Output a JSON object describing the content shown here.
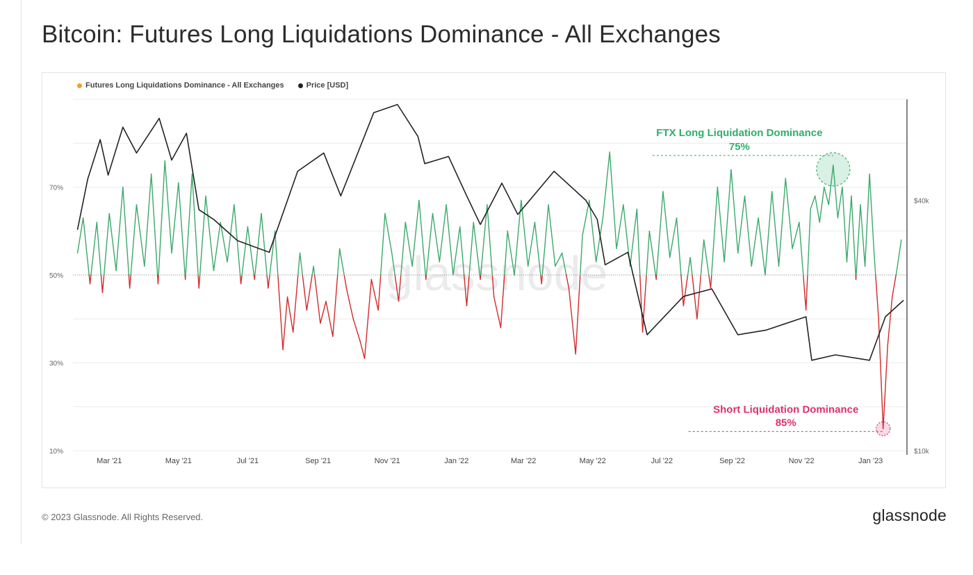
{
  "page": {
    "title": "Bitcoin: Futures Long Liquidations Dominance - All Exchanges",
    "copyright": "© 2023 Glassnode. All Rights Reserved.",
    "logo": "glassnode",
    "watermark": "glassnode"
  },
  "colors": {
    "above_50": "#3aa86b",
    "below_50": "#d02a2a",
    "price": "#222222",
    "dominance_legend": "#f0a030",
    "ftx_annotation": "#2fae6b",
    "short_annotation": "#e0306a"
  },
  "chart_data": {
    "type": "line",
    "title": "Bitcoin: Futures Long Liquidations Dominance - All Exchanges",
    "legend": [
      {
        "name": "Futures Long Liquidations Dominance - All Exchanges",
        "color": "#f0a030"
      },
      {
        "name": "Price [USD]",
        "color": "#222222"
      }
    ],
    "x_ticks": [
      "Mar '21",
      "May '21",
      "Jul '21",
      "Sep '21",
      "Nov '21",
      "Jan '22",
      "Mar '22",
      "May '22",
      "Jul '22",
      "Sep '22",
      "Nov '22",
      "Jan '23"
    ],
    "y_left": {
      "ticks": [
        "10%",
        "30%",
        "50%",
        "70%"
      ],
      "range": [
        10,
        90
      ],
      "unit": "%"
    },
    "y_right": {
      "ticks": [
        "$10k",
        "$40k"
      ],
      "scale": "log",
      "range": [
        10000,
        70000
      ]
    },
    "threshold": 50,
    "series": [
      {
        "name": "Futures Long Liquidations Dominance - All Exchanges",
        "axis": "left",
        "points": [
          [
            "2021-02-01",
            55
          ],
          [
            "2021-02-06",
            63
          ],
          [
            "2021-02-12",
            48
          ],
          [
            "2021-02-18",
            62
          ],
          [
            "2021-02-23",
            46
          ],
          [
            "2021-03-01",
            64
          ],
          [
            "2021-03-07",
            51
          ],
          [
            "2021-03-13",
            70
          ],
          [
            "2021-03-19",
            47
          ],
          [
            "2021-03-25",
            66
          ],
          [
            "2021-04-01",
            52
          ],
          [
            "2021-04-07",
            73
          ],
          [
            "2021-04-13",
            48
          ],
          [
            "2021-04-19",
            76
          ],
          [
            "2021-04-25",
            55
          ],
          [
            "2021-05-01",
            71
          ],
          [
            "2021-05-07",
            49
          ],
          [
            "2021-05-13",
            73
          ],
          [
            "2021-05-19",
            47
          ],
          [
            "2021-05-25",
            68
          ],
          [
            "2021-06-01",
            51
          ],
          [
            "2021-06-07",
            62
          ],
          [
            "2021-06-13",
            53
          ],
          [
            "2021-06-19",
            66
          ],
          [
            "2021-06-25",
            48
          ],
          [
            "2021-07-01",
            61
          ],
          [
            "2021-07-07",
            49
          ],
          [
            "2021-07-13",
            64
          ],
          [
            "2021-07-19",
            47
          ],
          [
            "2021-07-25",
            60
          ],
          [
            "2021-08-01",
            33
          ],
          [
            "2021-08-05",
            45
          ],
          [
            "2021-08-10",
            37
          ],
          [
            "2021-08-16",
            55
          ],
          [
            "2021-08-22",
            42
          ],
          [
            "2021-08-28",
            52
          ],
          [
            "2021-09-03",
            39
          ],
          [
            "2021-09-08",
            44
          ],
          [
            "2021-09-14",
            36
          ],
          [
            "2021-09-20",
            56
          ],
          [
            "2021-09-26",
            47
          ],
          [
            "2021-10-02",
            40
          ],
          [
            "2021-10-08",
            35
          ],
          [
            "2021-10-12",
            31
          ],
          [
            "2021-10-18",
            49
          ],
          [
            "2021-10-24",
            42
          ],
          [
            "2021-10-30",
            64
          ],
          [
            "2021-11-05",
            55
          ],
          [
            "2021-11-11",
            44
          ],
          [
            "2021-11-17",
            62
          ],
          [
            "2021-11-23",
            52
          ],
          [
            "2021-11-29",
            67
          ],
          [
            "2021-12-05",
            49
          ],
          [
            "2021-12-11",
            64
          ],
          [
            "2021-12-17",
            53
          ],
          [
            "2021-12-23",
            66
          ],
          [
            "2021-12-29",
            50
          ],
          [
            "2022-01-04",
            61
          ],
          [
            "2022-01-10",
            43
          ],
          [
            "2022-01-16",
            62
          ],
          [
            "2022-01-22",
            49
          ],
          [
            "2022-01-28",
            66
          ],
          [
            "2022-02-03",
            45
          ],
          [
            "2022-02-09",
            38
          ],
          [
            "2022-02-15",
            60
          ],
          [
            "2022-02-21",
            50
          ],
          [
            "2022-02-27",
            67
          ],
          [
            "2022-03-05",
            52
          ],
          [
            "2022-03-11",
            62
          ],
          [
            "2022-03-17",
            48
          ],
          [
            "2022-03-23",
            66
          ],
          [
            "2022-03-29",
            52
          ],
          [
            "2022-04-04",
            55
          ],
          [
            "2022-04-10",
            47
          ],
          [
            "2022-04-16",
            32
          ],
          [
            "2022-04-22",
            59
          ],
          [
            "2022-04-28",
            67
          ],
          [
            "2022-05-04",
            53
          ],
          [
            "2022-05-10",
            63
          ],
          [
            "2022-05-16",
            78
          ],
          [
            "2022-05-22",
            56
          ],
          [
            "2022-05-28",
            66
          ],
          [
            "2022-06-03",
            52
          ],
          [
            "2022-06-09",
            65
          ],
          [
            "2022-06-14",
            37
          ],
          [
            "2022-06-20",
            60
          ],
          [
            "2022-06-26",
            49
          ],
          [
            "2022-07-02",
            69
          ],
          [
            "2022-07-08",
            54
          ],
          [
            "2022-07-14",
            63
          ],
          [
            "2022-07-20",
            43
          ],
          [
            "2022-07-26",
            54
          ],
          [
            "2022-08-01",
            40
          ],
          [
            "2022-08-07",
            58
          ],
          [
            "2022-08-13",
            47
          ],
          [
            "2022-08-19",
            70
          ],
          [
            "2022-08-25",
            53
          ],
          [
            "2022-08-31",
            74
          ],
          [
            "2022-09-06",
            55
          ],
          [
            "2022-09-12",
            68
          ],
          [
            "2022-09-18",
            52
          ],
          [
            "2022-09-24",
            63
          ],
          [
            "2022-09-30",
            50
          ],
          [
            "2022-10-06",
            69
          ],
          [
            "2022-10-12",
            52
          ],
          [
            "2022-10-18",
            72
          ],
          [
            "2022-10-24",
            56
          ],
          [
            "2022-10-30",
            62
          ],
          [
            "2022-11-05",
            42
          ],
          [
            "2022-11-09",
            65
          ],
          [
            "2022-11-13",
            68
          ],
          [
            "2022-11-17",
            62
          ],
          [
            "2022-11-21",
            70
          ],
          [
            "2022-11-25",
            66
          ],
          [
            "2022-11-29",
            75
          ],
          [
            "2022-12-03",
            63
          ],
          [
            "2022-12-07",
            70
          ],
          [
            "2022-12-11",
            53
          ],
          [
            "2022-12-15",
            68
          ],
          [
            "2022-12-19",
            49
          ],
          [
            "2022-12-23",
            66
          ],
          [
            "2022-12-27",
            52
          ],
          [
            "2022-12-31",
            73
          ],
          [
            "2023-01-04",
            55
          ],
          [
            "2023-01-08",
            40
          ],
          [
            "2023-01-12",
            15
          ],
          [
            "2023-01-16",
            34
          ],
          [
            "2023-01-20",
            45
          ],
          [
            "2023-01-24",
            51
          ],
          [
            "2023-01-28",
            58
          ]
        ]
      },
      {
        "name": "Price [USD]",
        "axis": "right",
        "points": [
          [
            "2021-02-01",
            34000
          ],
          [
            "2021-02-10",
            45000
          ],
          [
            "2021-02-21",
            56000
          ],
          [
            "2021-02-28",
            46000
          ],
          [
            "2021-03-13",
            60000
          ],
          [
            "2021-03-25",
            52000
          ],
          [
            "2021-04-14",
            63000
          ],
          [
            "2021-04-25",
            50000
          ],
          [
            "2021-05-08",
            58000
          ],
          [
            "2021-05-19",
            38000
          ],
          [
            "2021-06-01",
            36000
          ],
          [
            "2021-06-22",
            32000
          ],
          [
            "2021-07-20",
            30000
          ],
          [
            "2021-08-14",
            47000
          ],
          [
            "2021-09-06",
            52000
          ],
          [
            "2021-09-21",
            41000
          ],
          [
            "2021-10-01",
            48000
          ],
          [
            "2021-10-20",
            65000
          ],
          [
            "2021-11-10",
            68000
          ],
          [
            "2021-11-28",
            57000
          ],
          [
            "2021-12-04",
            49000
          ],
          [
            "2021-12-25",
            51000
          ],
          [
            "2022-01-10",
            41000
          ],
          [
            "2022-01-22",
            35000
          ],
          [
            "2022-02-10",
            44000
          ],
          [
            "2022-02-24",
            37000
          ],
          [
            "2022-03-28",
            47000
          ],
          [
            "2022-04-25",
            40000
          ],
          [
            "2022-05-05",
            36000
          ],
          [
            "2022-05-12",
            28000
          ],
          [
            "2022-06-01",
            30000
          ],
          [
            "2022-06-18",
            19000
          ],
          [
            "2022-07-20",
            23500
          ],
          [
            "2022-08-14",
            24500
          ],
          [
            "2022-09-06",
            19000
          ],
          [
            "2022-10-01",
            19500
          ],
          [
            "2022-11-05",
            21000
          ],
          [
            "2022-11-10",
            16500
          ],
          [
            "2022-12-01",
            17000
          ],
          [
            "2022-12-31",
            16500
          ],
          [
            "2023-01-14",
            21000
          ],
          [
            "2023-01-30",
            23000
          ]
        ]
      }
    ],
    "annotations": [
      {
        "text": "FTX Long Liquidation Dominance",
        "value": "75%",
        "date": "2022-11-29",
        "y": 75
      },
      {
        "text": "Short Liquidation Dominance",
        "value": "85%",
        "date": "2023-01-12",
        "y": 15
      }
    ]
  }
}
